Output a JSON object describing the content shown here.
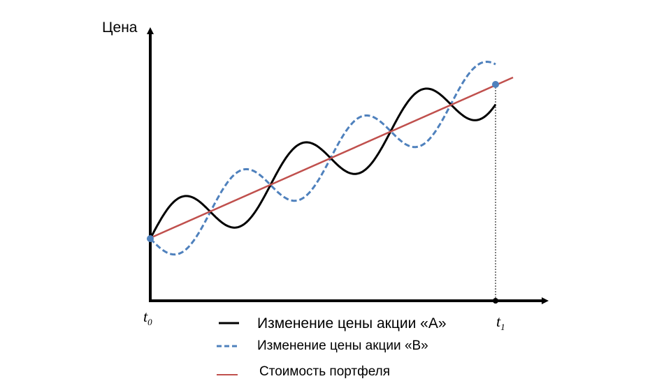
{
  "chart_data": {
    "type": "line",
    "ylabel": "Цена",
    "xlabel": "",
    "x_ticks": [
      {
        "main": "t",
        "sub": "0"
      },
      {
        "main": "t",
        "sub": "1"
      }
    ],
    "grid": false,
    "legend_placement": "bottom",
    "series": [
      {
        "name": "Изменение цены акции «А»",
        "style": "solid",
        "color": "#000000"
      },
      {
        "name": "Изменение цены акции «В»",
        "style": "dashed",
        "color": "#4f81bd"
      },
      {
        "name": "Стоимость портфеля",
        "style": "solid",
        "color": "#c0504d"
      }
    ]
  }
}
